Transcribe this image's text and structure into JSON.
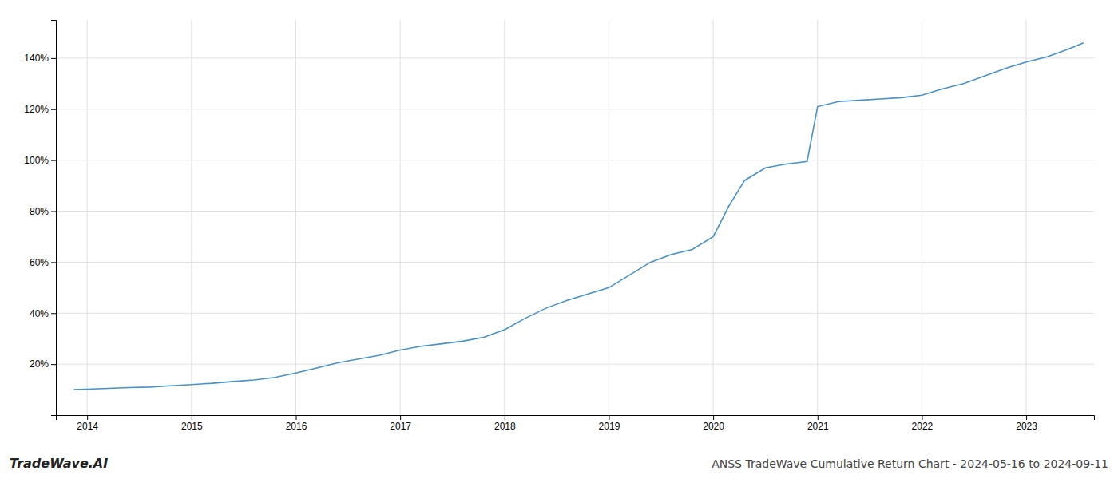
{
  "chart_data": {
    "type": "line",
    "title": "ANSS TradeWave Cumulative Return Chart - 2024-05-16 to 2024-09-11",
    "annotations": [
      "TradeWave.AI"
    ],
    "color": "#4a90c4",
    "grid": true,
    "x": [
      2013.87,
      2014.0,
      2014.2,
      2014.4,
      2014.6,
      2014.8,
      2015.0,
      2015.2,
      2015.4,
      2015.6,
      2015.8,
      2016.0,
      2016.2,
      2016.4,
      2016.6,
      2016.8,
      2017.0,
      2017.2,
      2017.4,
      2017.6,
      2017.8,
      2018.0,
      2018.2,
      2018.4,
      2018.6,
      2018.8,
      2019.0,
      2019.2,
      2019.4,
      2019.6,
      2019.8,
      2020.0,
      2020.15,
      2020.3,
      2020.5,
      2020.7,
      2020.9,
      2021.0,
      2021.2,
      2021.4,
      2021.6,
      2021.8,
      2022.0,
      2022.2,
      2022.4,
      2022.6,
      2022.8,
      2023.0,
      2023.2,
      2023.4,
      2023.55
    ],
    "values": [
      10.0,
      10.2,
      10.5,
      10.8,
      11.0,
      11.5,
      12.0,
      12.5,
      13.2,
      13.8,
      14.8,
      16.5,
      18.5,
      20.5,
      22.0,
      23.5,
      25.5,
      27.0,
      28.0,
      29.0,
      30.5,
      33.5,
      38.0,
      42.0,
      45.0,
      47.5,
      50.0,
      55.0,
      60.0,
      63.0,
      65.0,
      70.0,
      82.0,
      92.0,
      97.0,
      98.5,
      99.5,
      121.0,
      123.0,
      123.5,
      124.0,
      124.5,
      125.5,
      128.0,
      130.0,
      133.0,
      136.0,
      138.5,
      140.5,
      143.5,
      146.0
    ],
    "xlim": [
      2013.7,
      2023.65
    ],
    "ylim": [
      0,
      155
    ],
    "xticks": [
      2014,
      2015,
      2016,
      2017,
      2018,
      2019,
      2020,
      2021,
      2022,
      2023
    ],
    "yticks": [
      {
        "value": 20,
        "label": "20%"
      },
      {
        "value": 40,
        "label": "40%"
      },
      {
        "value": 60,
        "label": "60%"
      },
      {
        "value": 80,
        "label": "80%"
      },
      {
        "value": 100,
        "label": "100%"
      },
      {
        "value": 120,
        "label": "120%"
      },
      {
        "value": 140,
        "label": "140%"
      }
    ]
  }
}
